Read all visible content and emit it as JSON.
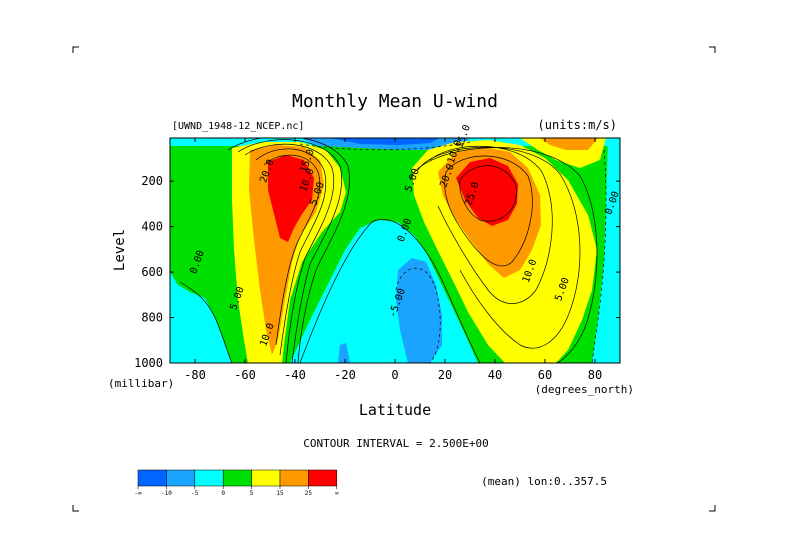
{
  "chart_data": {
    "type": "contour",
    "title": "Monthly Mean U-wind",
    "dataset_label": "[UWND_1948-12_NCEP.nc]",
    "units_label": "(units:m/s)",
    "xlabel": "Latitude",
    "x_units": "(degrees_north)",
    "ylabel": "Level",
    "y_units": "(millibar)",
    "xlim": [
      -90,
      90
    ],
    "ylim": [
      1000,
      10
    ],
    "x_ticks": [
      -80,
      -60,
      -40,
      -20,
      0,
      20,
      40,
      60,
      80
    ],
    "y_ticks": [
      200,
      400,
      600,
      800,
      1000
    ],
    "contour_interval_text": "CONTOUR INTERVAL = 2.500E+00",
    "average_note": "(mean) lon:0..357.5",
    "colorbar": {
      "ticks": [
        "-∞",
        "-10",
        "-5",
        "0",
        "5",
        "15",
        "25",
        "∞"
      ],
      "colors": [
        "#0066ff",
        "#1aa3ff",
        "#00ffff",
        "#00e000",
        "#ffff00",
        "#ff9900",
        "#ff0000"
      ]
    },
    "features": [
      {
        "kind": "max",
        "lat": -42,
        "level": 220,
        "value": 30
      },
      {
        "kind": "max",
        "lat": 33,
        "level": 210,
        "value": 27.5
      },
      {
        "kind": "min",
        "lat": 12,
        "level": 700,
        "value": -8
      },
      {
        "kind": "min",
        "lat": 5,
        "level": 60,
        "value": -12
      }
    ],
    "contour_labels": [
      {
        "text": "20.0",
        "lat": -50,
        "level": 160
      },
      {
        "text": "10.0",
        "lat": -34,
        "level": 200
      },
      {
        "text": "5.00",
        "lat": -30,
        "level": 260
      },
      {
        "text": "15.0",
        "lat": -34,
        "level": 115
      },
      {
        "text": "0.00",
        "lat": -78,
        "level": 560
      },
      {
        "text": "5.00",
        "lat": -62,
        "level": 720
      },
      {
        "text": "10.0",
        "lat": -50,
        "level": 880
      },
      {
        "text": "0.00",
        "lat": 5,
        "level": 420
      },
      {
        "text": "5.00",
        "lat": 8,
        "level": 200
      },
      {
        "text": "20.0",
        "lat": 22,
        "level": 180
      },
      {
        "text": "25.0",
        "lat": 32,
        "level": 260
      },
      {
        "text": "10.0",
        "lat": 55,
        "level": 600
      },
      {
        "text": "5.00",
        "lat": 68,
        "level": 680
      },
      {
        "text": "-5.00",
        "lat": 2,
        "level": 740
      },
      {
        "text": "10.0",
        "lat": 25,
        "level": 75
      },
      {
        "text": "0.00",
        "lat": 88,
        "level": 300
      },
      {
        "text": "-15.0",
        "lat": 28,
        "level": 20
      }
    ]
  }
}
